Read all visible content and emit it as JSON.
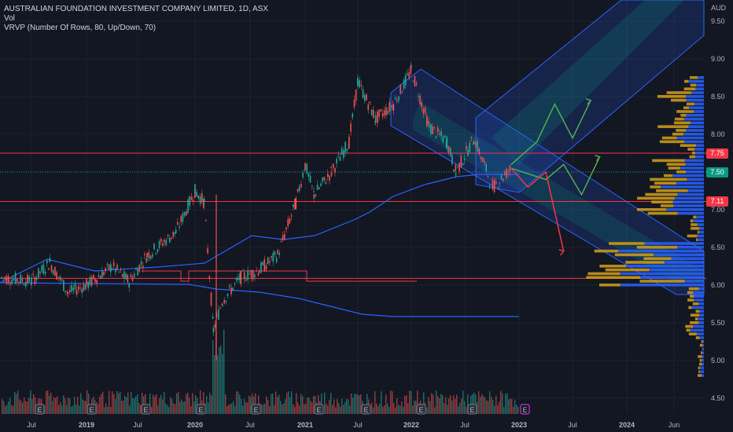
{
  "legend": {
    "title": "AUSTRALIAN FOUNDATION INVESTMENT COMPANY LIMITED, 1D, ASX",
    "vol": "Vol",
    "vrvp": "VRVP (Number Of Rows, 80, Up/Down, 70)"
  },
  "yaxis": {
    "currency": "AUD"
  },
  "badges": [
    {
      "value": "7.75",
      "color": "#f23645"
    },
    {
      "value": "7.50",
      "color": "#089981"
    },
    {
      "value": "7.11",
      "color": "#f23645"
    }
  ],
  "colors": {
    "up": "#26a69a",
    "down": "#ef5350",
    "vwap": "#2962ff",
    "channel": "#2962ff",
    "level": "#f23645",
    "vp_up": "#2962ff",
    "vp_down": "#d4a017",
    "bg": "#131722"
  },
  "chart_data": {
    "type": "candlestick",
    "y_ticks": [
      4.5,
      5.0,
      5.5,
      6.0,
      6.5,
      7.0,
      7.5,
      8.0,
      8.5,
      9.0,
      9.5
    ],
    "y_tick_labels": [
      "4.50",
      "5.00",
      "5.50",
      "6.00",
      "6.50",
      "7.00",
      "7.50",
      "8.00",
      "8.50",
      "9.00",
      "9.50"
    ],
    "x_tick_labels": [
      "Jul",
      "2019",
      "Jul",
      "2020",
      "Jul",
      "2021",
      "Jul",
      "2022",
      "Jul",
      "2023",
      "Jul",
      "2024",
      "Jun"
    ],
    "x_tick_dates": [
      "2018-07",
      "2019-01",
      "2019-07",
      "2020-01",
      "2020-07",
      "2021-01",
      "2021-07",
      "2022-01",
      "2022-07",
      "2023-01",
      "2023-07",
      "2024-01",
      "2024-06"
    ],
    "price_path": [
      [
        "2018-05",
        6.1
      ],
      [
        "2018-07",
        6.05
      ],
      [
        "2018-09",
        6.3
      ],
      [
        "2018-11",
        5.9
      ],
      [
        "2019-01",
        6.0
      ],
      [
        "2019-04",
        6.25
      ],
      [
        "2019-06",
        6.05
      ],
      [
        "2019-08",
        6.4
      ],
      [
        "2019-11",
        6.7
      ],
      [
        "2020-01",
        7.25
      ],
      [
        "2020-02",
        7.1
      ],
      [
        "2020-03",
        5.4
      ],
      [
        "2020-04",
        5.8
      ],
      [
        "2020-06",
        6.1
      ],
      [
        "2020-08",
        6.2
      ],
      [
        "2020-10",
        6.4
      ],
      [
        "2020-12",
        7.1
      ],
      [
        "2021-01",
        7.6
      ],
      [
        "2021-02",
        7.2
      ],
      [
        "2021-04",
        7.5
      ],
      [
        "2021-06",
        7.9
      ],
      [
        "2021-07",
        8.7
      ],
      [
        "2021-09",
        8.2
      ],
      [
        "2021-11",
        8.4
      ],
      [
        "2022-01",
        8.85
      ],
      [
        "2022-03",
        8.1
      ],
      [
        "2022-05",
        7.9
      ],
      [
        "2022-06",
        7.5
      ],
      [
        "2022-08",
        7.95
      ],
      [
        "2022-10",
        7.3
      ],
      [
        "2022-12",
        7.55
      ]
    ],
    "levels": [
      7.75,
      7.11,
      6.09
    ],
    "projection_green": [
      [
        "2022-12",
        7.55
      ],
      [
        "2023-04",
        7.4
      ],
      [
        "2023-06",
        7.6
      ],
      [
        "2023-08",
        7.2
      ],
      [
        "2023-10",
        7.7
      ]
    ],
    "projection_green_upper": [
      [
        "2022-12",
        7.6
      ],
      [
        "2023-03",
        7.9
      ],
      [
        "2023-05",
        8.4
      ],
      [
        "2023-07",
        7.95
      ],
      [
        "2023-09",
        8.45
      ]
    ],
    "projection_red": [
      [
        "2022-12",
        7.55
      ],
      [
        "2023-02",
        7.3
      ],
      [
        "2023-04",
        7.5
      ],
      [
        "2023-06",
        6.45
      ]
    ],
    "vol_markers_E": 10,
    "vrvp_rows": 80
  }
}
